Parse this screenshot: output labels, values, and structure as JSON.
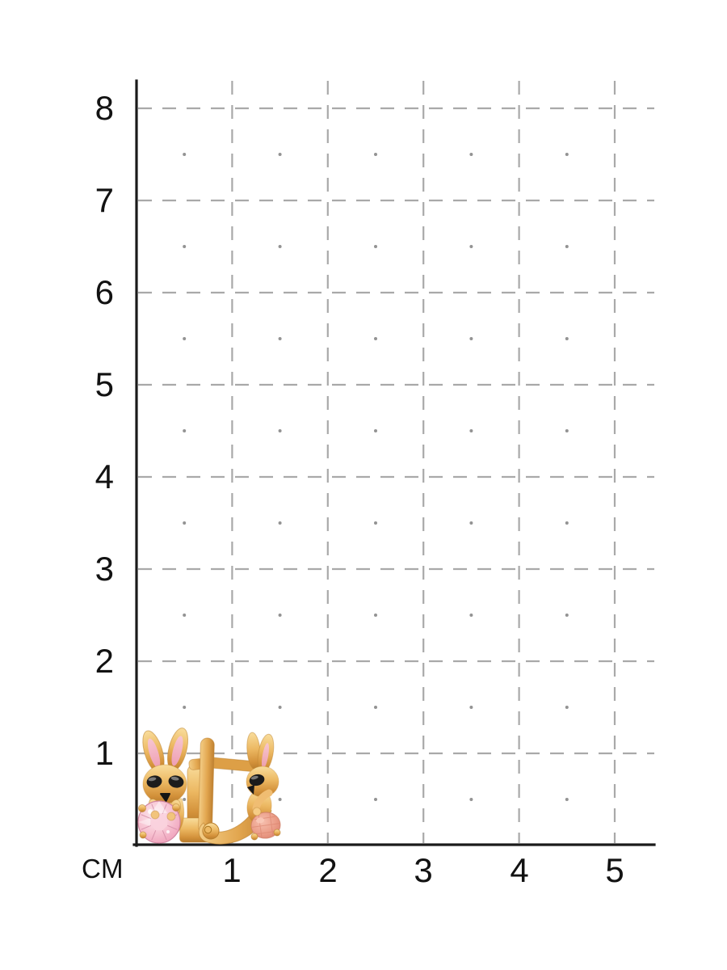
{
  "page": {
    "background_color": "#ffffff"
  },
  "ruler": {
    "unit_label": "СМ",
    "x_tick_labels": [
      "1",
      "2",
      "3",
      "4",
      "5"
    ],
    "y_tick_labels": [
      "8",
      "7",
      "6",
      "5",
      "4",
      "3",
      "2",
      "1"
    ],
    "colors": {
      "axis": "#1b1b1b",
      "grid_dash": "#a9a9a9",
      "grid_dot": "#939393",
      "label_text": "#121212"
    }
  },
  "product": {
    "description": "pair of gold children's earrings shaped as bunnies holding round pink stones, shown on a centimeter sizing grid",
    "views": [
      {
        "name": "front-view",
        "features": [
          "bunny with two ears with pink enamel inner",
          "black oval eyes",
          "black triangle nose",
          "round faceted pink stone",
          "vertical gold post with base"
        ]
      },
      {
        "name": "side-view",
        "features": [
          "english-lock clasp frame",
          "hinge with rivet at bottom",
          "profile bunny with black eye",
          "pink stone seen from the side"
        ]
      }
    ],
    "colors": {
      "gold_light": "#f9dd9c",
      "gold": "#e5ab54",
      "gold_dark": "#b87c2c",
      "ear_inner_pink": "#f2afc0",
      "stone_pink": "#f4b7ca",
      "stone_side_pink": "#eb9d88",
      "eye_black": "#1c1c1c"
    }
  },
  "chart_data": {
    "type": "scatter",
    "title": "",
    "xlabel": "СМ",
    "ylabel": "",
    "x_ticks": [
      1,
      2,
      3,
      4,
      5
    ],
    "y_ticks": [
      1,
      2,
      3,
      4,
      5,
      6,
      7,
      8
    ],
    "xlim": [
      0,
      5.4
    ],
    "ylim": [
      0,
      8.3
    ],
    "grid": "dashed gray gridlines at every integer cm; small gray dots at every half-integer intersection; solid black left and bottom axes",
    "legend": "none",
    "overlay_objects": [
      {
        "label": "earring front view (bunny with pink stone)",
        "x_cm": [
          0.0,
          0.73
        ],
        "y_cm": [
          0.0,
          1.2
        ],
        "width_cm": 0.73,
        "height_cm": 1.2
      },
      {
        "label": "earring side view (english lock)",
        "x_cm": [
          0.55,
          1.55
        ],
        "y_cm": [
          0.0,
          1.15
        ],
        "width_cm": 1.0,
        "height_cm": 1.15
      }
    ]
  }
}
